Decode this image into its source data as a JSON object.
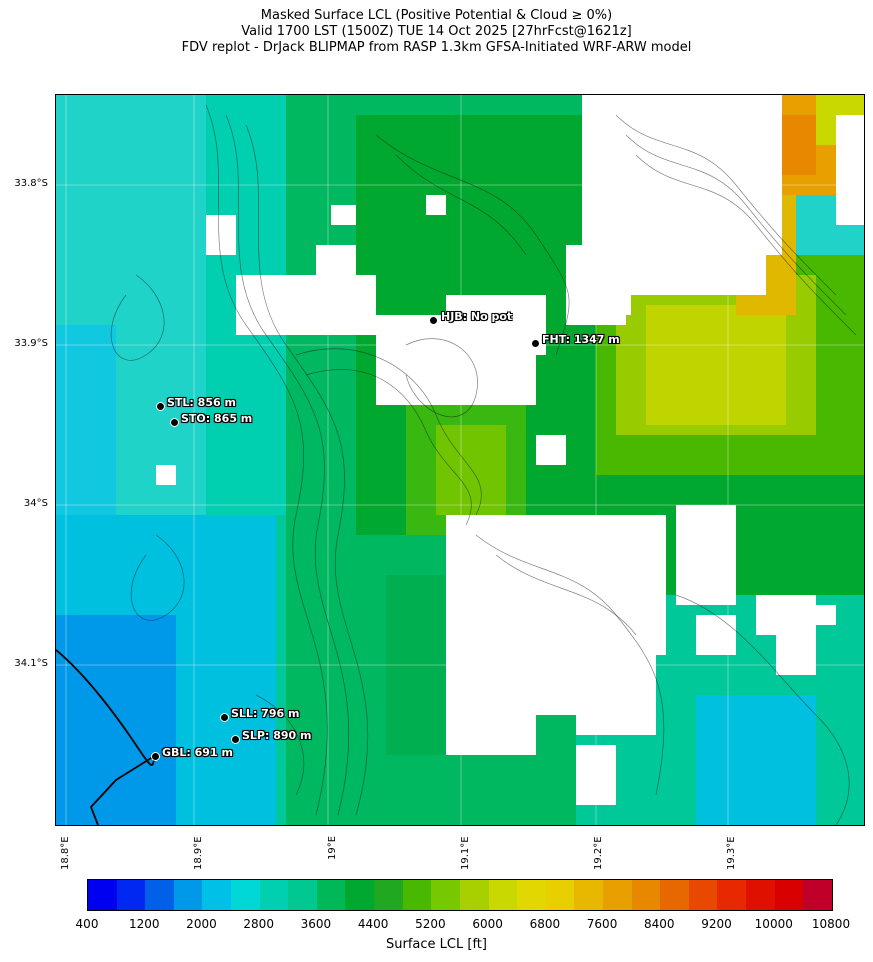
{
  "title": {
    "line1": "Masked Surface LCL (Positive Potential & Cloud ≥ 0%)",
    "line2": "Valid 1700 LST (1500Z) TUE 14 Oct 2025 [27hrFcst@1621z]",
    "line3": "FDV replot - DrJack BLIPMAP from RASP 1.3km GFSA-Initiated WRF-ARW model"
  },
  "lat_labels": [
    "33.8°S",
    "33.9°S",
    "34°S",
    "34.1°S"
  ],
  "lon_labels": [
    "18.8°E",
    "18.9°E",
    "19°E",
    "19.1°E",
    "19.2°E",
    "19.3°E"
  ],
  "stations": [
    {
      "code": "HJB",
      "label": "HJB: No pot"
    },
    {
      "code": "FHT",
      "label": "FHT: 1347 m"
    },
    {
      "code": "STL",
      "label": "STL: 856 m"
    },
    {
      "code": "STO",
      "label": "STO: 865 m"
    },
    {
      "code": "SLL",
      "label": "SLL: 796 m"
    },
    {
      "code": "SLP",
      "label": "SLP: 890 m"
    },
    {
      "code": "GBL",
      "label": "GBL: 691 m"
    }
  ],
  "colorbar": {
    "label": "Surface LCL [ft]",
    "ticks": [
      "400",
      "1200",
      "2000",
      "2800",
      "3600",
      "4400",
      "5200",
      "6000",
      "6800",
      "7600",
      "8400",
      "9200",
      "10000",
      "10800"
    ],
    "colors": [
      "#0000f0",
      "#0028f0",
      "#0060e8",
      "#0098e8",
      "#00c0e8",
      "#00d8d8",
      "#00d0b0",
      "#00c890",
      "#00b858",
      "#00a830",
      "#20a820",
      "#48b800",
      "#78c800",
      "#a8d000",
      "#c8d800",
      "#e0d800",
      "#e8d000",
      "#e8b800",
      "#e8a000",
      "#e88800",
      "#e86800",
      "#e84800",
      "#e82800",
      "#e01000",
      "#d80000",
      "#c00028"
    ]
  }
}
